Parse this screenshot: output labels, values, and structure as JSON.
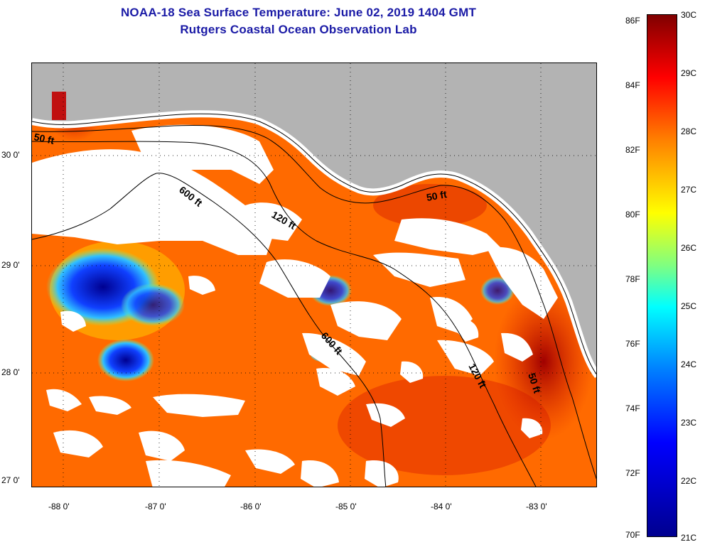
{
  "title": {
    "line1": "NOAA-18 Sea Surface Temperature:  June 02, 2019 1404 GMT",
    "line2": "Rutgers Coastal Ocean Observation Lab"
  },
  "map": {
    "longitude_labels": [
      "-88 0'",
      "-87 0'",
      "-86 0'",
      "-85 0'",
      "-84 0'",
      "-83 0'"
    ],
    "latitude_labels": [
      "30 0'",
      "29 0'",
      "28 0'",
      "27 0'"
    ],
    "contour_labels": [
      "50 ft",
      "600 ft",
      "120 ft",
      "50 ft",
      "600 ft",
      "120 ft",
      "50 ft"
    ],
    "colors": {
      "land": "#b3b3b3",
      "cloud": "#ffffff",
      "warm_water": "#ff6a00",
      "hot_water": "#c00000",
      "cool_water": "#0000c8"
    }
  },
  "colorbar": {
    "fahrenheit_labels": [
      "86F",
      "84F",
      "82F",
      "80F",
      "78F",
      "76F",
      "74F",
      "72F",
      "70F"
    ],
    "celsius_labels": [
      "30C",
      "29C",
      "28C",
      "27C",
      "26C",
      "25C",
      "24C",
      "23C",
      "22C",
      "21C"
    ]
  }
}
